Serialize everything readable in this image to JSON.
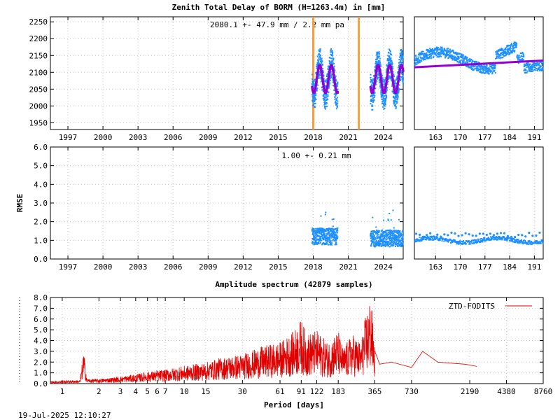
{
  "colors": {
    "series_blue": "#1e90ff",
    "fit_purple": "#9400d3",
    "event_orange": "#f4a040",
    "spectrum_red": "#e00000",
    "grid": "#c8c8c8"
  },
  "footer": {
    "timestamp": "19-Jul-2025 12:10:27"
  },
  "chart_data": [
    {
      "id": "ztd-long",
      "type": "scatter",
      "title": "Zenith Total Delay of BORM (H=1263.4m) in [mm]",
      "annotation": "2080.1 +-  47.9 mm /  2.2 mm pa",
      "xlabel": "",
      "ylabel": "",
      "xlim": [
        1995.5,
        2025.7
      ],
      "ylim": [
        1930,
        2265
      ],
      "x_ticks": [
        "1997",
        "2000",
        "2003",
        "2006",
        "2009",
        "2012",
        "2015",
        "2018",
        "2021",
        "2024"
      ],
      "y_ticks": [
        "1950",
        "2000",
        "2050",
        "2100",
        "2150",
        "2200",
        "2250"
      ],
      "grid": true,
      "event_lines": [
        2018.0,
        2021.9
      ],
      "segments": [
        {
          "x": [
            2017.9,
            2020.1
          ],
          "mean": 2080,
          "amp": 48
        },
        {
          "x": [
            2022.9,
            2025.7
          ],
          "mean": 2080,
          "amp": 48
        }
      ],
      "series": [
        {
          "name": "",
          "kind": "points",
          "color": "#1e90ff"
        },
        {
          "name": "",
          "kind": "fit",
          "color": "#9400d3"
        }
      ]
    },
    {
      "id": "ztd-recent",
      "type": "scatter",
      "title": "",
      "xlim": [
        157,
        193.5
      ],
      "ylim": [
        1930,
        2265
      ],
      "x_ticks": [
        "163",
        "170",
        "177",
        "184",
        "191"
      ],
      "grid": true,
      "fit_line": {
        "x": [
          157,
          193.5
        ],
        "y": [
          2115,
          2135
        ]
      },
      "series": [
        {
          "name": "",
          "kind": "points",
          "color": "#1e90ff"
        },
        {
          "name": "",
          "kind": "fit",
          "color": "#9400d3"
        }
      ]
    },
    {
      "id": "rmse-long",
      "type": "scatter",
      "title": "",
      "annotation": "1.00 +-  0.21 mm",
      "xlabel": "",
      "ylabel": "RMSE",
      "xlim": [
        1995.5,
        2025.7
      ],
      "ylim": [
        0,
        6
      ],
      "x_ticks": [
        "1997",
        "2000",
        "2003",
        "2006",
        "2009",
        "2012",
        "2015",
        "2018",
        "2021",
        "2024"
      ],
      "y_ticks": [
        "0.0",
        "1.0",
        "2.0",
        "3.0",
        "4.0",
        "5.0",
        "6.0"
      ],
      "grid": true,
      "segments": [
        {
          "x": [
            2017.9,
            2020.1
          ],
          "mean": 1.2
        },
        {
          "x": [
            2022.9,
            2025.7
          ],
          "mean": 1.1
        }
      ],
      "series": [
        {
          "name": "",
          "kind": "points",
          "color": "#1e90ff"
        }
      ]
    },
    {
      "id": "rmse-recent",
      "type": "scatter",
      "title": "",
      "xlim": [
        157,
        193.5
      ],
      "ylim": [
        0,
        6
      ],
      "x_ticks": [
        "163",
        "170",
        "177",
        "184",
        "191"
      ],
      "grid": true,
      "series": [
        {
          "name": "",
          "kind": "points",
          "color": "#1e90ff"
        }
      ]
    },
    {
      "id": "amplitude-spectrum",
      "type": "line",
      "title": "Amplitude spectrum (42879 samples)",
      "xlabel": "Period [days]",
      "ylabel": "",
      "xscale": "log",
      "xlim": [
        0.8,
        8760
      ],
      "ylim": [
        0,
        8
      ],
      "x_ticks": [
        "1",
        "2",
        "3",
        "4",
        "5",
        "6",
        "7",
        "10",
        "15",
        "30",
        "61",
        "91",
        "122",
        "183",
        "365",
        "730",
        "2190",
        "4380",
        "8760"
      ],
      "y_ticks": [
        "0.0",
        "1.0",
        "2.0",
        "3.0",
        "4.0",
        "5.0",
        "6.0",
        "7.0",
        "8.0"
      ],
      "grid": true,
      "legend": "top-right",
      "series": [
        {
          "name": "ZTD-FODITS",
          "color": "#e00000",
          "x": [
            0.8,
            1,
            1.4,
            1.5,
            1.6,
            2,
            3,
            4,
            5,
            7,
            10,
            15,
            20,
            30,
            45,
            61,
            80,
            91,
            100,
            122,
            150,
            183,
            200,
            240,
            280,
            310,
            340,
            365,
            400,
            500,
            730,
            900,
            1200,
            2000,
            2500
          ],
          "y": [
            0.2,
            0.25,
            0.3,
            2.8,
            0.4,
            0.4,
            0.6,
            0.8,
            1.0,
            1.2,
            1.5,
            1.8,
            2.2,
            2.5,
            3.2,
            3.5,
            4.5,
            5.5,
            4.2,
            4.5,
            3.5,
            4.5,
            3.0,
            4.2,
            3.5,
            6.0,
            7.5,
            3.0,
            1.8,
            2.0,
            1.5,
            3.0,
            2.0,
            1.8,
            1.6
          ]
        }
      ]
    }
  ]
}
